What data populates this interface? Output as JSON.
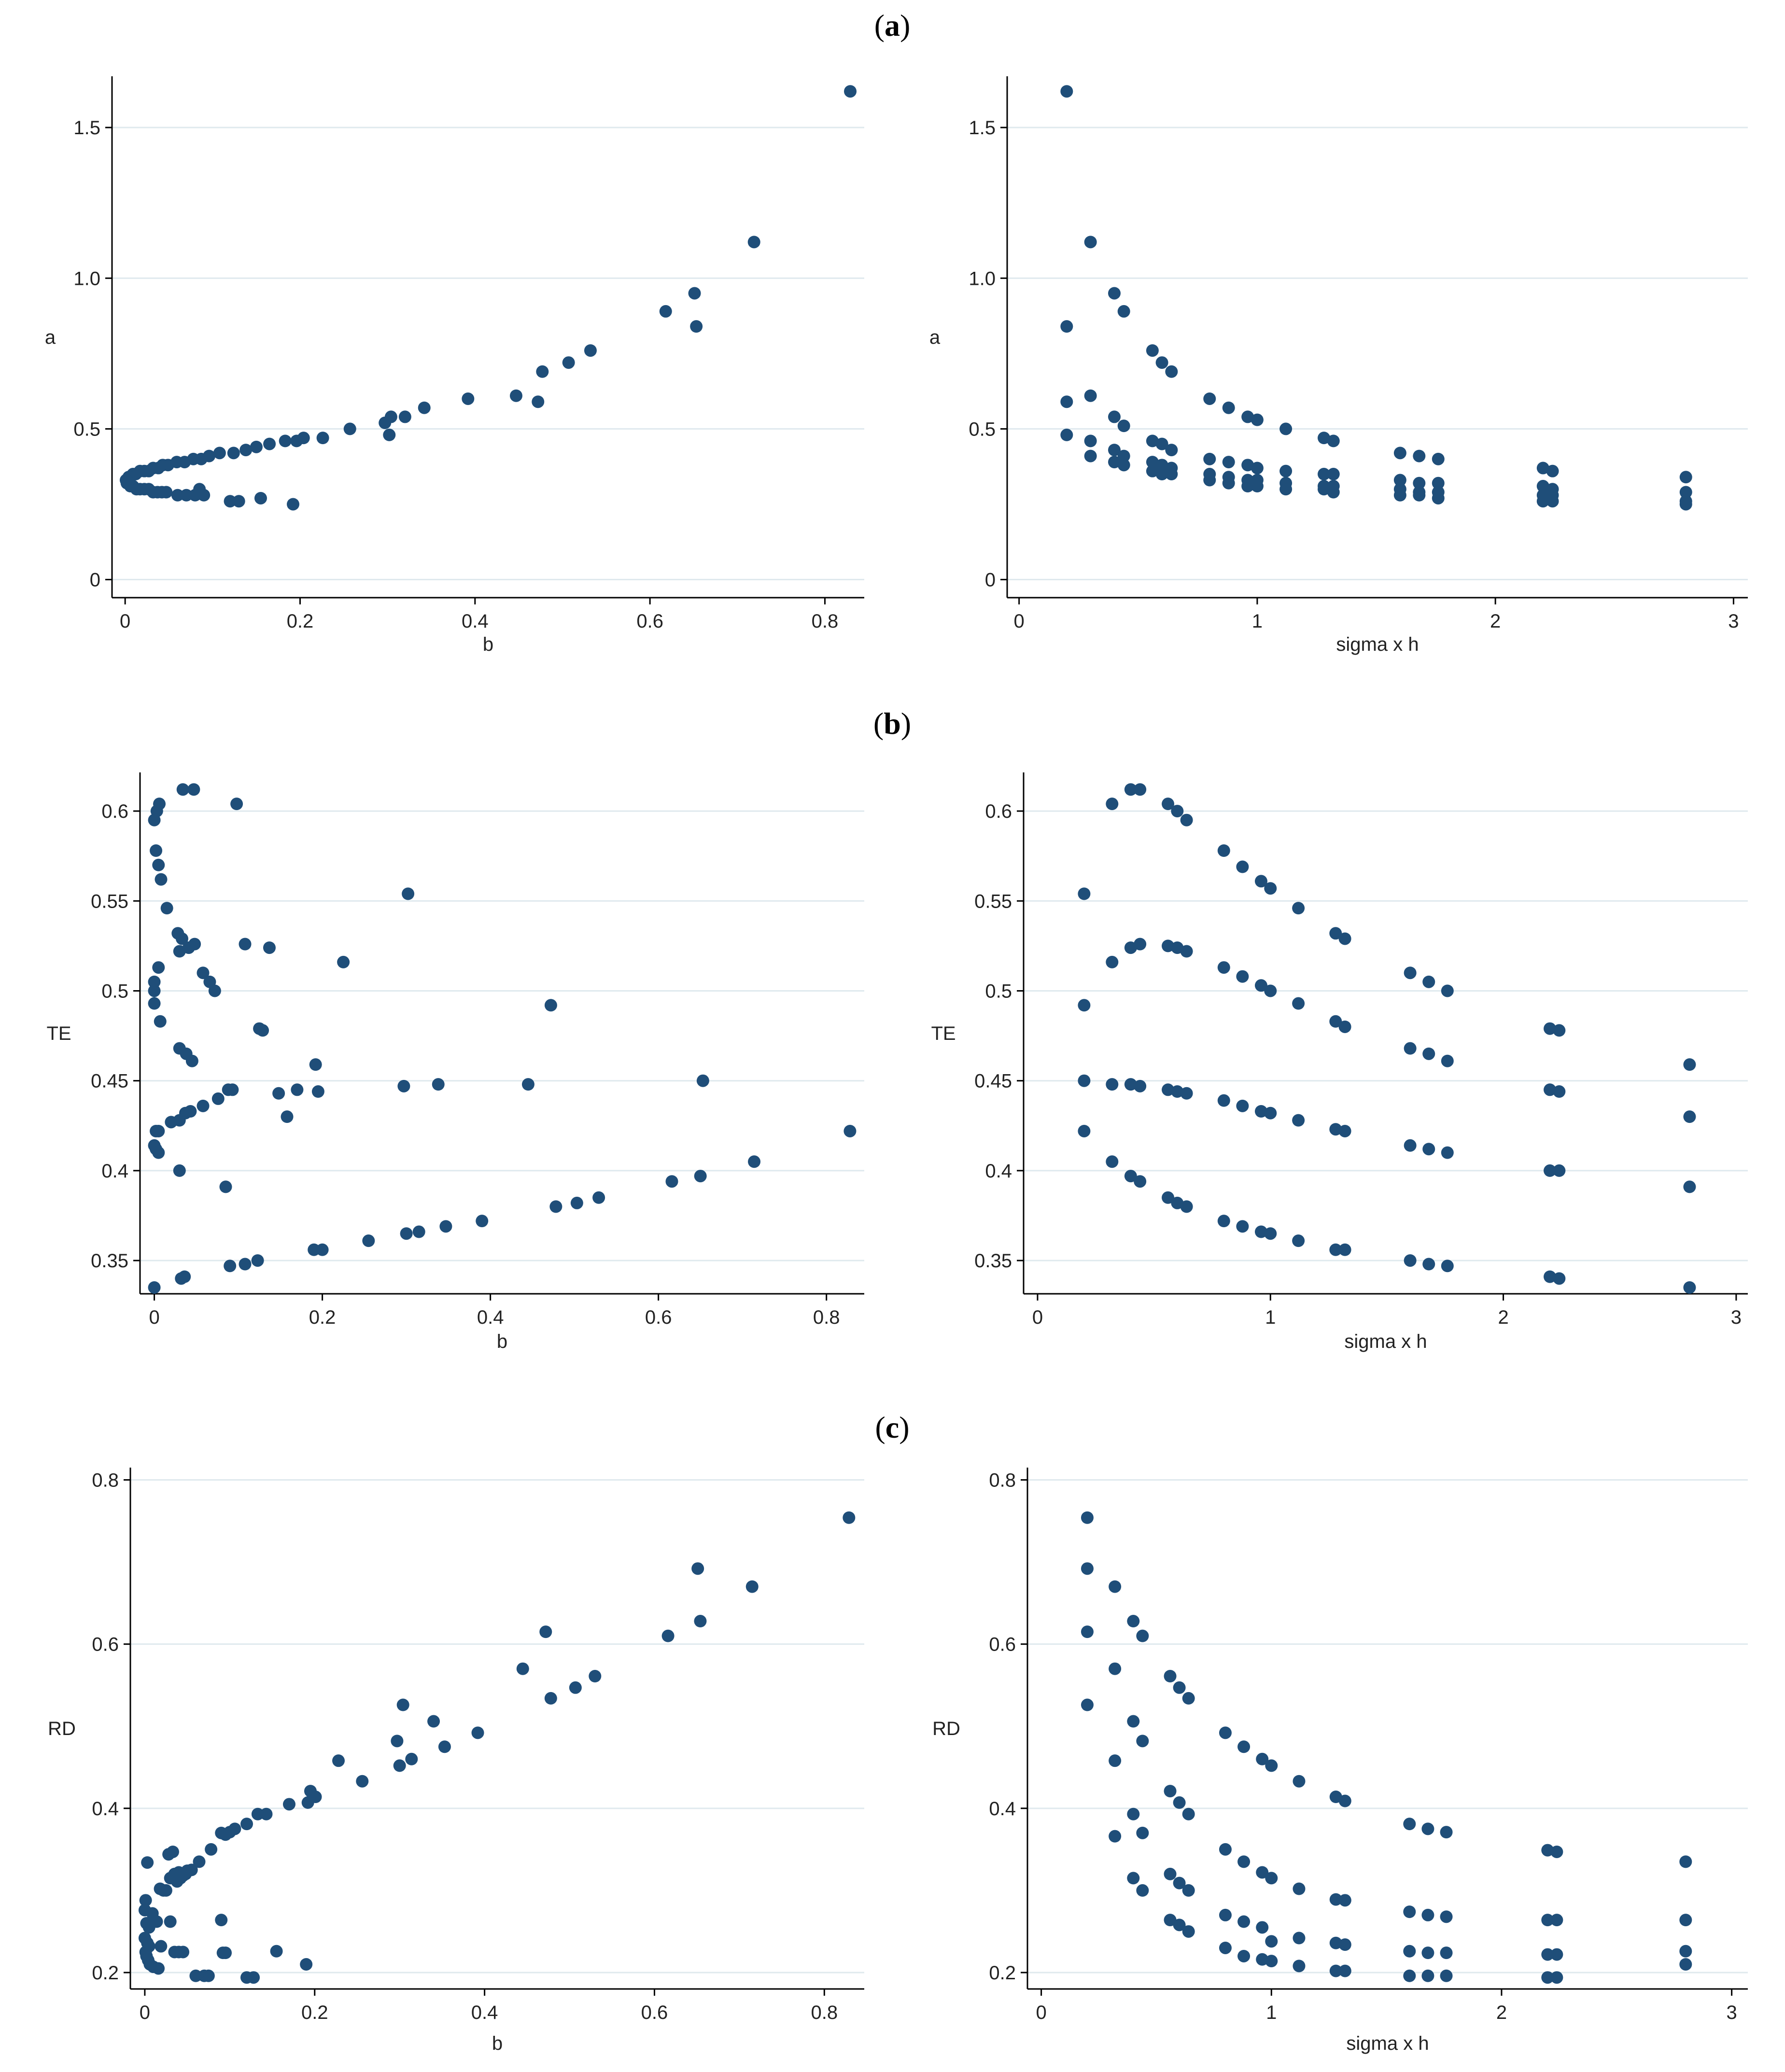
{
  "figure": {
    "panel_labels": [
      {
        "open": "(",
        "letter": "a",
        "close": ")"
      },
      {
        "open": "(",
        "letter": "b",
        "close": ")"
      },
      {
        "open": "(",
        "letter": "c",
        "close": ")"
      }
    ]
  },
  "colors": {
    "marker": "#1f4e79",
    "grid": "#dfe9ee",
    "axis": "#000000"
  },
  "chart_data": [
    {
      "type": "scatter",
      "title": "",
      "xlabel": "b",
      "ylabel": "a",
      "xlim": [
        -0.015,
        0.845
      ],
      "ylim": [
        -0.06,
        1.67
      ],
      "xticks": [
        0,
        0.2,
        0.4,
        0.6,
        0.8
      ],
      "xticklabels": [
        "0",
        "0.2",
        "0.4",
        "0.6",
        "0.8"
      ],
      "yticks": [
        0,
        0.5,
        1.0,
        1.5
      ],
      "yticklabels": [
        "0",
        "0.5",
        "1.0",
        "1.5"
      ],
      "grid_y": true,
      "x": [
        0.829,
        0.719,
        0.651,
        0.618,
        0.653,
        0.532,
        0.507,
        0.477,
        0.447,
        0.472,
        0.392,
        0.342,
        0.32,
        0.304,
        0.297,
        0.302,
        0.257,
        0.226,
        0.204,
        0.196,
        0.183,
        0.165,
        0.15,
        0.138,
        0.124,
        0.108,
        0.096,
        0.087,
        0.078,
        0.068,
        0.059,
        0.049,
        0.043,
        0.038,
        0.032,
        0.027,
        0.022,
        0.017,
        0.012,
        0.009,
        0.006,
        0.004,
        0.002,
        0.001,
        0.002,
        0.004,
        0.006,
        0.009,
        0.013,
        0.017,
        0.022,
        0.027,
        0.032,
        0.037,
        0.042,
        0.047,
        0.06,
        0.07,
        0.08,
        0.09,
        0.085,
        0.12,
        0.13,
        0.155,
        0.192
      ],
      "y": [
        1.62,
        1.12,
        0.95,
        0.89,
        0.84,
        0.76,
        0.72,
        0.69,
        0.61,
        0.59,
        0.6,
        0.57,
        0.54,
        0.54,
        0.52,
        0.48,
        0.5,
        0.47,
        0.47,
        0.46,
        0.46,
        0.45,
        0.44,
        0.43,
        0.42,
        0.42,
        0.41,
        0.4,
        0.4,
        0.39,
        0.39,
        0.38,
        0.38,
        0.37,
        0.37,
        0.36,
        0.36,
        0.36,
        0.35,
        0.35,
        0.34,
        0.34,
        0.33,
        0.33,
        0.32,
        0.32,
        0.31,
        0.31,
        0.3,
        0.3,
        0.3,
        0.3,
        0.29,
        0.29,
        0.29,
        0.29,
        0.28,
        0.28,
        0.28,
        0.28,
        0.3,
        0.26,
        0.26,
        0.27,
        0.25
      ]
    },
    {
      "type": "scatter",
      "title": "",
      "xlabel": "sigma x h",
      "ylabel": "a",
      "xlim": [
        -0.05,
        3.06
      ],
      "ylim": [
        -0.06,
        1.67
      ],
      "xticks": [
        0,
        1,
        2,
        3
      ],
      "xticklabels": [
        "0",
        "1",
        "2",
        "3"
      ],
      "yticks": [
        0,
        0.5,
        1.0,
        1.5
      ],
      "yticklabels": [
        "0",
        "0.5",
        "1.0",
        "1.5"
      ],
      "grid_y": true,
      "x": [
        0.2,
        0.2,
        0.2,
        0.2,
        0.3,
        0.3,
        0.3,
        0.3,
        0.4,
        0.4,
        0.4,
        0.4,
        0.44,
        0.44,
        0.44,
        0.44,
        0.56,
        0.56,
        0.56,
        0.56,
        0.6,
        0.6,
        0.6,
        0.6,
        0.64,
        0.64,
        0.64,
        0.64,
        0.8,
        0.8,
        0.8,
        0.8,
        0.88,
        0.88,
        0.88,
        0.88,
        0.96,
        0.96,
        0.96,
        0.96,
        1.0,
        1.0,
        1.0,
        1.0,
        1.12,
        1.12,
        1.12,
        1.12,
        1.28,
        1.28,
        1.28,
        1.28,
        1.32,
        1.32,
        1.32,
        1.32,
        1.6,
        1.6,
        1.6,
        1.6,
        1.68,
        1.68,
        1.68,
        1.68,
        1.76,
        1.76,
        1.76,
        1.76,
        2.2,
        2.2,
        2.2,
        2.2,
        2.24,
        2.24,
        2.24,
        2.24,
        2.8,
        2.8,
        2.8,
        2.8
      ],
      "y": [
        1.62,
        0.84,
        0.59,
        0.48,
        1.12,
        0.61,
        0.46,
        0.41,
        0.95,
        0.54,
        0.43,
        0.39,
        0.89,
        0.51,
        0.41,
        0.38,
        0.76,
        0.46,
        0.39,
        0.36,
        0.72,
        0.45,
        0.38,
        0.35,
        0.69,
        0.43,
        0.37,
        0.35,
        0.6,
        0.4,
        0.35,
        0.33,
        0.57,
        0.39,
        0.34,
        0.32,
        0.54,
        0.38,
        0.33,
        0.31,
        0.53,
        0.37,
        0.33,
        0.31,
        0.5,
        0.36,
        0.32,
        0.3,
        0.47,
        0.35,
        0.31,
        0.3,
        0.46,
        0.35,
        0.31,
        0.29,
        0.42,
        0.33,
        0.3,
        0.28,
        0.41,
        0.32,
        0.29,
        0.28,
        0.4,
        0.32,
        0.29,
        0.27,
        0.37,
        0.31,
        0.28,
        0.26,
        0.36,
        0.3,
        0.28,
        0.26,
        0.34,
        0.29,
        0.26,
        0.25
      ]
    },
    {
      "type": "scatter",
      "title": "",
      "xlabel": "b",
      "ylabel": "TE",
      "xlim": [
        -0.017,
        0.845
      ],
      "ylim": [
        0.3315,
        0.6215
      ],
      "xticks": [
        0,
        0.2,
        0.4,
        0.6,
        0.8
      ],
      "xticklabels": [
        "0",
        "0.2",
        "0.4",
        "0.6",
        "0.8"
      ],
      "yticks": [
        0.35,
        0.4,
        0.45,
        0.5,
        0.55,
        0.6
      ],
      "yticklabels": [
        "0.35",
        "0.4",
        "0.45",
        "0.5",
        "0.55",
        "0.6"
      ],
      "grid_y": true,
      "x": [
        0.034,
        0.047,
        0.098,
        0.006,
        0.003,
        0.0,
        0.002,
        0.005,
        0.008,
        0.015,
        0.028,
        0.033,
        0.03,
        0.041,
        0.048,
        0.108,
        0.137,
        0.225,
        0.302,
        0.058,
        0.066,
        0.072,
        0.0,
        0.0,
        0.0,
        0.005,
        0.007,
        0.125,
        0.129,
        0.472,
        0.03,
        0.038,
        0.045,
        0.192,
        0.17,
        0.195,
        0.088,
        0.093,
        0.148,
        0.297,
        0.338,
        0.445,
        0.653,
        0.158,
        0.076,
        0.058,
        0.043,
        0.037,
        0.03,
        0.02,
        0.002,
        0.005,
        0.0,
        0.002,
        0.005,
        0.828,
        0.03,
        0.714,
        0.65,
        0.616,
        0.085,
        0.529,
        0.503,
        0.478,
        0.39,
        0.347,
        0.315,
        0.3,
        0.255,
        0.2,
        0.19,
        0.123,
        0.108,
        0.09,
        0.036,
        0.032,
        0.0
      ],
      "y": [
        0.612,
        0.612,
        0.604,
        0.604,
        0.6,
        0.595,
        0.578,
        0.57,
        0.562,
        0.546,
        0.532,
        0.529,
        0.522,
        0.524,
        0.526,
        0.526,
        0.524,
        0.516,
        0.554,
        0.51,
        0.505,
        0.5,
        0.505,
        0.5,
        0.493,
        0.513,
        0.483,
        0.479,
        0.478,
        0.492,
        0.468,
        0.465,
        0.461,
        0.459,
        0.445,
        0.444,
        0.445,
        0.445,
        0.443,
        0.447,
        0.448,
        0.448,
        0.45,
        0.43,
        0.44,
        0.436,
        0.433,
        0.432,
        0.428,
        0.427,
        0.422,
        0.422,
        0.414,
        0.412,
        0.41,
        0.422,
        0.4,
        0.405,
        0.397,
        0.394,
        0.391,
        0.385,
        0.382,
        0.38,
        0.372,
        0.369,
        0.366,
        0.365,
        0.361,
        0.356,
        0.356,
        0.35,
        0.348,
        0.347,
        0.341,
        0.34,
        0.335
      ]
    },
    {
      "type": "scatter",
      "title": "",
      "xlabel": "sigma x h",
      "ylabel": "TE",
      "xlim": [
        -0.06,
        3.05
      ],
      "ylim": [
        0.3315,
        0.6215
      ],
      "xticks": [
        0,
        1,
        2,
        3
      ],
      "xticklabels": [
        "0",
        "1",
        "2",
        "3"
      ],
      "yticks": [
        0.35,
        0.4,
        0.45,
        0.5,
        0.55,
        0.6
      ],
      "yticklabels": [
        "0.35",
        "0.4",
        "0.45",
        "0.5",
        "0.55",
        "0.6"
      ],
      "grid_y": true,
      "x": [
        0.2,
        0.2,
        0.2,
        0.2,
        0.32,
        0.32,
        0.32,
        0.32,
        0.4,
        0.4,
        0.4,
        0.4,
        0.44,
        0.44,
        0.44,
        0.44,
        0.56,
        0.56,
        0.56,
        0.56,
        0.6,
        0.6,
        0.6,
        0.6,
        0.64,
        0.64,
        0.64,
        0.64,
        0.8,
        0.8,
        0.8,
        0.8,
        0.88,
        0.88,
        0.88,
        0.88,
        0.96,
        0.96,
        0.96,
        0.96,
        1.0,
        1.0,
        1.0,
        1.0,
        1.12,
        1.12,
        1.12,
        1.12,
        1.28,
        1.28,
        1.28,
        1.28,
        1.32,
        1.32,
        1.32,
        1.32,
        1.6,
        1.6,
        1.6,
        1.6,
        1.68,
        1.68,
        1.68,
        1.68,
        1.76,
        1.76,
        1.76,
        1.76,
        2.2,
        2.2,
        2.2,
        2.2,
        2.24,
        2.24,
        2.24,
        2.24,
        2.8,
        2.8,
        2.8,
        2.8
      ],
      "y": [
        0.554,
        0.492,
        0.45,
        0.422,
        0.604,
        0.516,
        0.448,
        0.405,
        0.612,
        0.524,
        0.448,
        0.397,
        0.612,
        0.526,
        0.447,
        0.394,
        0.604,
        0.525,
        0.445,
        0.385,
        0.6,
        0.524,
        0.444,
        0.382,
        0.595,
        0.522,
        0.443,
        0.38,
        0.578,
        0.513,
        0.439,
        0.372,
        0.569,
        0.508,
        0.436,
        0.369,
        0.561,
        0.503,
        0.433,
        0.366,
        0.557,
        0.5,
        0.432,
        0.365,
        0.546,
        0.493,
        0.428,
        0.361,
        0.532,
        0.483,
        0.423,
        0.356,
        0.529,
        0.48,
        0.422,
        0.356,
        0.51,
        0.468,
        0.414,
        0.35,
        0.505,
        0.465,
        0.412,
        0.348,
        0.5,
        0.461,
        0.41,
        0.347,
        0.479,
        0.445,
        0.4,
        0.341,
        0.478,
        0.444,
        0.4,
        0.34,
        0.459,
        0.43,
        0.391,
        0.335
      ]
    },
    {
      "type": "scatter",
      "title": "",
      "xlabel": "b",
      "ylabel": "RD",
      "xlim": [
        -0.017,
        0.847
      ],
      "ylim": [
        0.18,
        0.815
      ],
      "xticks": [
        0,
        0.2,
        0.4,
        0.6,
        0.8
      ],
      "xticklabels": [
        "0",
        "0.2",
        "0.4",
        "0.6",
        "0.8"
      ],
      "yticks": [
        0.2,
        0.4,
        0.6,
        0.8
      ],
      "yticklabels": [
        "0.2",
        "0.4",
        "0.6",
        "0.8"
      ],
      "grid_y": true,
      "x": [
        0.829,
        0.651,
        0.715,
        0.472,
        0.654,
        0.616,
        0.445,
        0.507,
        0.53,
        0.478,
        0.304,
        0.34,
        0.297,
        0.353,
        0.314,
        0.3,
        0.392,
        0.228,
        0.256,
        0.195,
        0.201,
        0.192,
        0.17,
        0.143,
        0.133,
        0.12,
        0.106,
        0.1,
        0.095,
        0.09,
        0.078,
        0.064,
        0.055,
        0.048,
        0.042,
        0.038,
        0.033,
        0.028,
        0.022,
        0.018,
        0.003,
        0.001,
        0.0,
        0.002,
        0.005,
        0.009,
        0.014,
        0.019,
        0.025,
        0.03,
        0.035,
        0.04,
        0.045,
        0.05,
        0.0,
        0.003,
        0.005,
        0.001,
        0.002,
        0.004,
        0.006,
        0.01,
        0.016,
        0.03,
        0.035,
        0.04,
        0.045,
        0.09,
        0.092,
        0.095,
        0.155,
        0.19,
        0.06,
        0.07,
        0.075,
        0.12,
        0.128
      ],
      "y": [
        0.754,
        0.692,
        0.67,
        0.615,
        0.628,
        0.61,
        0.57,
        0.547,
        0.561,
        0.534,
        0.526,
        0.506,
        0.482,
        0.475,
        0.46,
        0.452,
        0.492,
        0.458,
        0.433,
        0.421,
        0.414,
        0.407,
        0.405,
        0.393,
        0.393,
        0.381,
        0.375,
        0.371,
        0.368,
        0.37,
        0.35,
        0.335,
        0.325,
        0.32,
        0.315,
        0.311,
        0.347,
        0.344,
        0.3,
        0.302,
        0.334,
        0.288,
        0.276,
        0.26,
        0.255,
        0.272,
        0.262,
        0.232,
        0.3,
        0.315,
        0.32,
        0.322,
        0.318,
        0.324,
        0.242,
        0.236,
        0.232,
        0.225,
        0.22,
        0.215,
        0.21,
        0.207,
        0.205,
        0.262,
        0.225,
        0.225,
        0.225,
        0.264,
        0.224,
        0.224,
        0.226,
        0.21,
        0.196,
        0.196,
        0.196,
        0.194,
        0.194
      ]
    },
    {
      "type": "scatter",
      "title": "",
      "xlabel": "sigma x h",
      "ylabel": "RD",
      "xlim": [
        -0.06,
        3.07
      ],
      "ylim": [
        0.18,
        0.815
      ],
      "xticks": [
        0,
        1,
        2,
        3
      ],
      "xticklabels": [
        "0",
        "1",
        "2",
        "3"
      ],
      "yticks": [
        0.2,
        0.4,
        0.6,
        0.8
      ],
      "yticklabels": [
        "0.2",
        "0.4",
        "0.6",
        "0.8"
      ],
      "grid_y": true,
      "x": [
        0.2,
        0.2,
        0.2,
        0.2,
        0.32,
        0.32,
        0.32,
        0.32,
        0.4,
        0.4,
        0.4,
        0.4,
        0.44,
        0.44,
        0.44,
        0.44,
        0.56,
        0.56,
        0.56,
        0.56,
        0.6,
        0.6,
        0.6,
        0.6,
        0.64,
        0.64,
        0.64,
        0.64,
        0.8,
        0.8,
        0.8,
        0.8,
        0.88,
        0.88,
        0.88,
        0.88,
        0.96,
        0.96,
        0.96,
        0.96,
        1.0,
        1.0,
        1.0,
        1.0,
        1.12,
        1.12,
        1.12,
        1.12,
        1.28,
        1.28,
        1.28,
        1.28,
        1.32,
        1.32,
        1.32,
        1.32,
        1.6,
        1.6,
        1.6,
        1.6,
        1.68,
        1.68,
        1.68,
        1.68,
        1.76,
        1.76,
        1.76,
        1.76,
        2.2,
        2.2,
        2.2,
        2.2,
        2.24,
        2.24,
        2.24,
        2.24,
        2.8,
        2.8,
        2.8,
        2.8
      ],
      "y": [
        0.754,
        0.692,
        0.615,
        0.526,
        0.67,
        0.57,
        0.458,
        0.366,
        0.628,
        0.506,
        0.393,
        0.315,
        0.61,
        0.482,
        0.37,
        0.3,
        0.561,
        0.421,
        0.32,
        0.264,
        0.547,
        0.407,
        0.309,
        0.258,
        0.534,
        0.393,
        0.3,
        0.25,
        0.492,
        0.35,
        0.27,
        0.23,
        0.475,
        0.335,
        0.262,
        0.22,
        0.46,
        0.322,
        0.255,
        0.216,
        0.452,
        0.315,
        0.238,
        0.214,
        0.433,
        0.302,
        0.242,
        0.208,
        0.414,
        0.289,
        0.236,
        0.202,
        0.409,
        0.288,
        0.234,
        0.202,
        0.381,
        0.274,
        0.226,
        0.196,
        0.375,
        0.27,
        0.224,
        0.196,
        0.371,
        0.268,
        0.224,
        0.196,
        0.349,
        0.264,
        0.222,
        0.194,
        0.347,
        0.264,
        0.222,
        0.194,
        0.335,
        0.264,
        0.226,
        0.21
      ]
    }
  ]
}
